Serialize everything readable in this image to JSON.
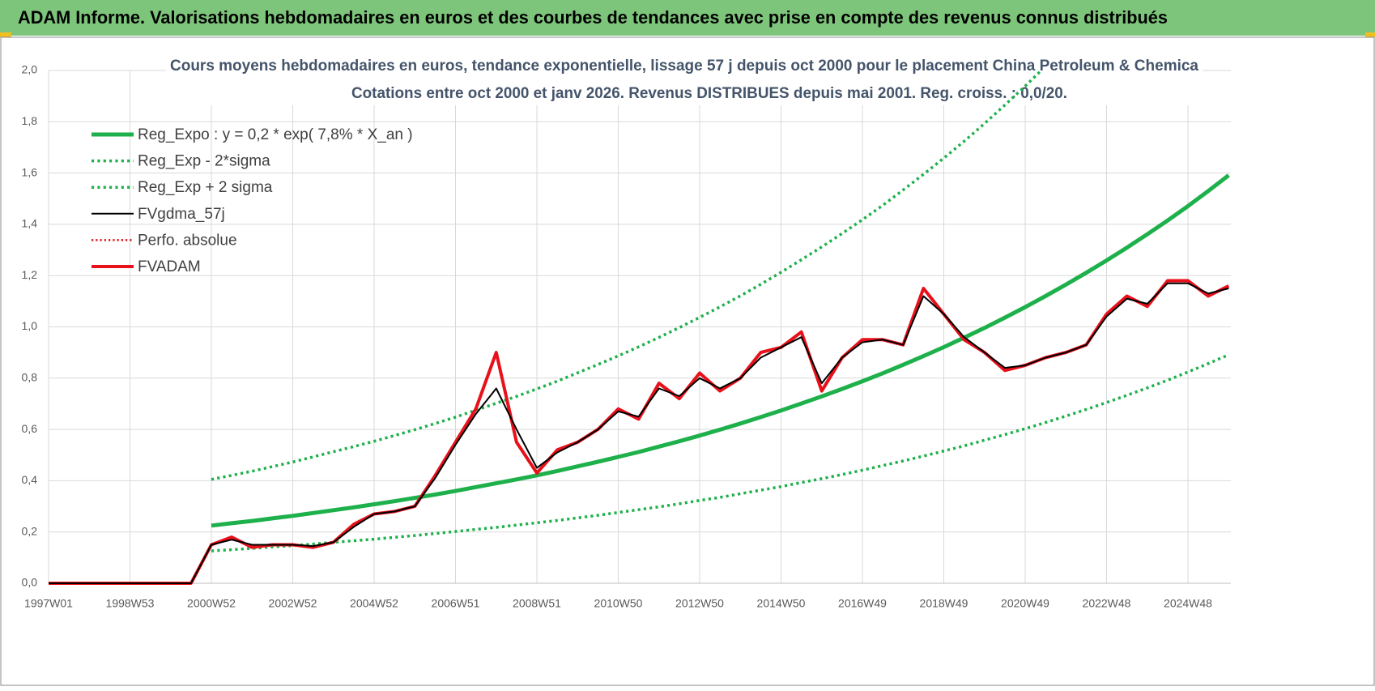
{
  "header": {
    "title": "ADAM Informe. Valorisations hebdomadaires en euros et des courbes de tendances avec prise en compte des revenus connus distribués"
  },
  "chart_data": {
    "type": "line",
    "title": "Cours moyens hebdomadaires en euros, tendance exponentielle, lissage 57 j depuis oct 2000 pour le placement China Petroleum & Chemica",
    "subtitle": "Cotations entre oct 2000 et janv 2026. Revenus DISTRIBUES depuis mai 2001. Reg. croiss. : 0,0/20.",
    "categories": [
      "1997W01",
      null,
      null,
      null,
      "1998W53",
      null,
      null,
      null,
      "2000W52",
      null,
      null,
      null,
      "2002W52",
      null,
      null,
      null,
      "2004W52",
      null,
      null,
      null,
      "2006W51",
      null,
      null,
      null,
      "2008W51",
      null,
      null,
      null,
      "2010W50",
      null,
      null,
      null,
      "2012W50",
      null,
      null,
      null,
      "2014W50",
      null,
      null,
      null,
      "2016W49",
      null,
      null,
      null,
      "2018W49",
      null,
      null,
      null,
      "2020W49",
      null,
      null,
      null,
      "2022W48",
      null,
      null,
      null,
      "2024W48",
      null,
      null
    ],
    "ylim": [
      0,
      2
    ],
    "yticks": [
      {
        "value": 0,
        "label": "0,0"
      },
      {
        "value": 0.2,
        "label": "0,2"
      },
      {
        "value": 0.4,
        "label": "0,4"
      },
      {
        "value": 0.6,
        "label": "0,6"
      },
      {
        "value": 0.8,
        "label": "0,8"
      },
      {
        "value": 1,
        "label": "1,0"
      },
      {
        "value": 1.2,
        "label": "1,2"
      },
      {
        "value": 1.4,
        "label": "1,4"
      },
      {
        "value": 1.6,
        "label": "1,6"
      },
      {
        "value": 1.8,
        "label": "1,8"
      },
      {
        "value": 2,
        "label": "2,0"
      }
    ],
    "grid": true,
    "series": [
      {
        "name": "Reg_Expo : y = 0,2 * exp( 7,8% *  X_an )",
        "color": "#1db04b",
        "style": "solid",
        "width": 5,
        "values": [
          null,
          null,
          null,
          null,
          null,
          null,
          null,
          null,
          0.225,
          0.234,
          0.243,
          0.253,
          0.263,
          0.274,
          0.285,
          0.296,
          0.308,
          0.32,
          0.333,
          0.346,
          0.36,
          0.375,
          0.39,
          0.405,
          0.421,
          0.438,
          0.456,
          0.474,
          0.493,
          0.512,
          0.533,
          0.554,
          0.576,
          0.599,
          0.623,
          0.648,
          0.674,
          0.701,
          0.729,
          0.758,
          0.788,
          0.819,
          0.852,
          0.886,
          0.921,
          0.958,
          0.996,
          1.036,
          1.077,
          1.12,
          1.165,
          1.211,
          1.259,
          1.309,
          1.361,
          1.415,
          1.471,
          1.53,
          1.591
        ]
      },
      {
        "name": "Reg_Exp - 2*sigma",
        "color": "#1db04b",
        "style": "dotted",
        "width": 3.5,
        "values": [
          null,
          null,
          null,
          null,
          null,
          null,
          null,
          null,
          0.126,
          0.131,
          0.136,
          0.142,
          0.147,
          0.153,
          0.16,
          0.166,
          0.172,
          0.179,
          0.186,
          0.194,
          0.202,
          0.21,
          0.218,
          0.227,
          0.236,
          0.245,
          0.255,
          0.265,
          0.276,
          0.287,
          0.298,
          0.31,
          0.323,
          0.335,
          0.349,
          0.363,
          0.377,
          0.393,
          0.408,
          0.424,
          0.441,
          0.459,
          0.477,
          0.496,
          0.516,
          0.536,
          0.558,
          0.58,
          0.603,
          0.627,
          0.652,
          0.678,
          0.705,
          0.733,
          0.762,
          0.792,
          0.824,
          0.857,
          0.891
        ]
      },
      {
        "name": "Reg_Exp + 2 sigma",
        "color": "#1db04b",
        "style": "dotted",
        "width": 3.5,
        "values": [
          null,
          null,
          null,
          null,
          null,
          null,
          null,
          null,
          0.405,
          0.421,
          0.437,
          0.455,
          0.473,
          0.493,
          0.513,
          0.533,
          0.554,
          0.576,
          0.599,
          0.623,
          0.648,
          0.675,
          0.702,
          0.729,
          0.758,
          0.788,
          0.821,
          0.853,
          0.887,
          0.922,
          0.959,
          0.997,
          1.037,
          1.078,
          1.121,
          1.166,
          1.213,
          1.262,
          1.312,
          1.364,
          1.418,
          1.474,
          1.534,
          1.595,
          1.658,
          1.724,
          1.793,
          1.865,
          1.939,
          2.016,
          null,
          null,
          null,
          null,
          null,
          null,
          null,
          null,
          null
        ]
      },
      {
        "name": "Perfo. absolue",
        "color": "#e0101a",
        "style": "dotted",
        "width": 2.5,
        "values": [
          0,
          0,
          0,
          0,
          0,
          0,
          0,
          0,
          0.15,
          0.18,
          0.14,
          0.15,
          0.15,
          0.14,
          0.16,
          0.23,
          0.27,
          0.28,
          0.3,
          0.42,
          0.55,
          0.68,
          0.9,
          0.55,
          0.43,
          0.52,
          0.55,
          0.6,
          0.68,
          0.64,
          0.78,
          0.72,
          0.82,
          0.75,
          0.8,
          0.9,
          0.92,
          0.98,
          0.75,
          0.88,
          0.95,
          0.95,
          0.93,
          1.15,
          1.05,
          0.95,
          0.9,
          0.83,
          0.85,
          0.88,
          0.9,
          0.93,
          1.05,
          1.12,
          1.08,
          1.18,
          1.18,
          1.12,
          1.16
        ]
      },
      {
        "name": "FVADAM",
        "color": "#e8101a",
        "style": "solid",
        "width": 4,
        "values": [
          0,
          0,
          0,
          0,
          0,
          0,
          0,
          0,
          0.15,
          0.18,
          0.14,
          0.15,
          0.15,
          0.14,
          0.16,
          0.23,
          0.27,
          0.28,
          0.3,
          0.42,
          0.55,
          0.68,
          0.9,
          0.55,
          0.43,
          0.52,
          0.55,
          0.6,
          0.68,
          0.64,
          0.78,
          0.72,
          0.82,
          0.75,
          0.8,
          0.9,
          0.92,
          0.98,
          0.75,
          0.88,
          0.95,
          0.95,
          0.93,
          1.15,
          1.05,
          0.95,
          0.9,
          0.83,
          0.85,
          0.88,
          0.9,
          0.93,
          1.05,
          1.12,
          1.08,
          1.18,
          1.18,
          1.12,
          1.16
        ]
      },
      {
        "name": "FVgdma_57j",
        "color": "#000000",
        "style": "solid",
        "width": 2,
        "values": [
          0,
          0,
          0,
          0,
          0,
          0,
          0,
          0,
          0.15,
          0.17,
          0.15,
          0.15,
          0.15,
          0.145,
          0.16,
          0.22,
          0.27,
          0.28,
          0.3,
          0.41,
          0.54,
          0.66,
          0.76,
          0.6,
          0.45,
          0.51,
          0.55,
          0.6,
          0.67,
          0.65,
          0.76,
          0.73,
          0.8,
          0.76,
          0.8,
          0.88,
          0.92,
          0.96,
          0.78,
          0.88,
          0.94,
          0.95,
          0.93,
          1.12,
          1.05,
          0.96,
          0.9,
          0.84,
          0.85,
          0.88,
          0.9,
          0.93,
          1.04,
          1.11,
          1.09,
          1.17,
          1.17,
          1.13,
          1.15
        ]
      }
    ]
  }
}
